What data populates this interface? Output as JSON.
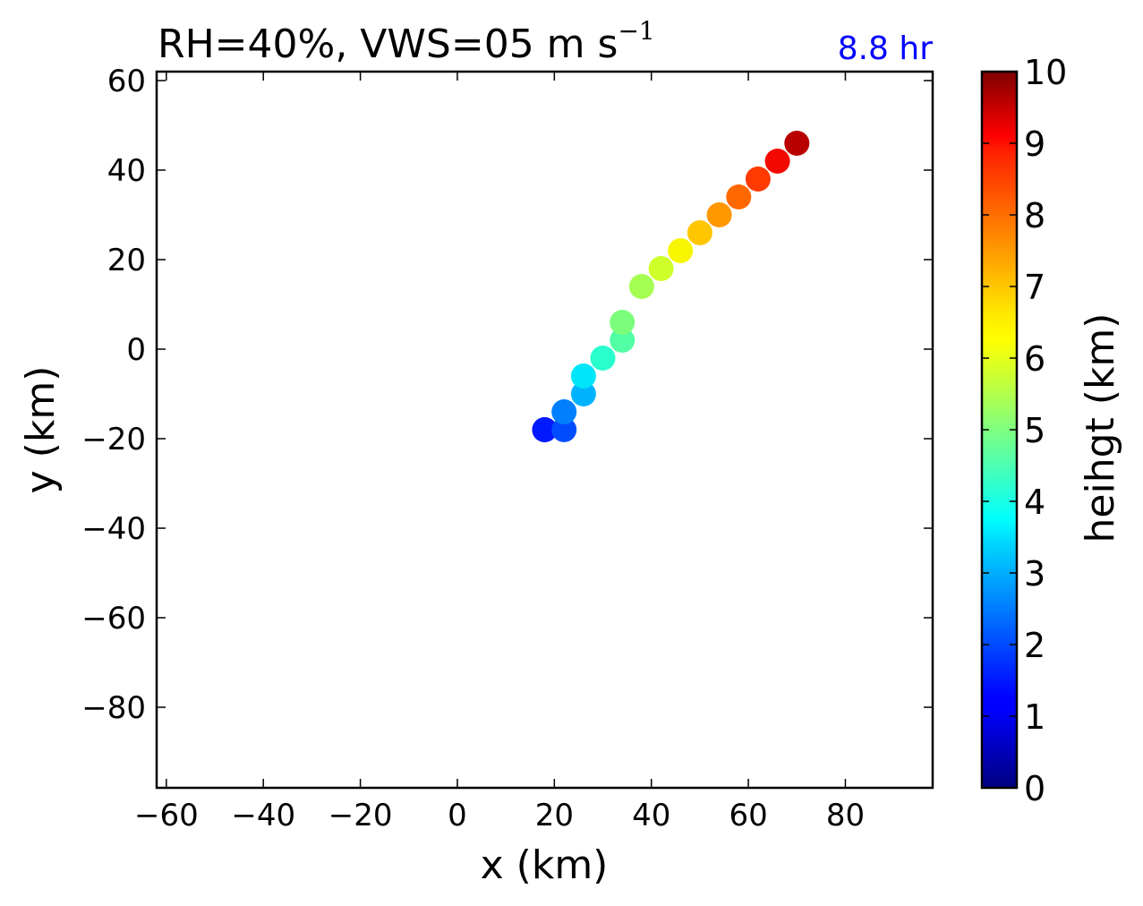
{
  "chart_data": {
    "type": "scatter",
    "title": "RH=40%, VWS=05 m s",
    "title_superscript": "−1",
    "time_label": "8.8 hr",
    "time_label_color": "#0000ff",
    "xlabel": "x (km)",
    "ylabel": "y (km)",
    "xlim": [
      -62,
      98
    ],
    "ylim": [
      -98,
      62
    ],
    "xticks": [
      -60,
      -40,
      -20,
      0,
      20,
      40,
      60,
      80
    ],
    "yticks": [
      60,
      40,
      20,
      0,
      -20,
      -40,
      -60,
      -80
    ],
    "xtick_labels": [
      "−60",
      "−40",
      "−20",
      "0",
      "20",
      "40",
      "60",
      "80"
    ],
    "ytick_labels": [
      "60",
      "40",
      "20",
      "0",
      "−20",
      "−40",
      "−60",
      "−80"
    ],
    "colormap": "jet",
    "colorbar": {
      "label": "heihgt (km)",
      "min": 0,
      "max": 10,
      "ticks": [
        0,
        1,
        2,
        3,
        4,
        5,
        6,
        7,
        8,
        9,
        10
      ],
      "tick_labels": [
        "0",
        "1",
        "2",
        "3",
        "4",
        "5",
        "6",
        "7",
        "8",
        "9",
        "10"
      ]
    },
    "points": [
      {
        "x": 18,
        "y": -18,
        "height": 1.0
      },
      {
        "x": 18,
        "y": -18,
        "height": 1.5
      },
      {
        "x": 22,
        "y": -18,
        "height": 2.0
      },
      {
        "x": 22,
        "y": -14,
        "height": 2.5
      },
      {
        "x": 26,
        "y": -10,
        "height": 3.0
      },
      {
        "x": 26,
        "y": -6,
        "height": 3.5
      },
      {
        "x": 30,
        "y": -2,
        "height": 4.0
      },
      {
        "x": 34,
        "y": 2,
        "height": 4.5
      },
      {
        "x": 34,
        "y": 6,
        "height": 5.0
      },
      {
        "x": 38,
        "y": 14,
        "height": 5.5
      },
      {
        "x": 42,
        "y": 18,
        "height": 6.0
      },
      {
        "x": 46,
        "y": 22,
        "height": 6.5
      },
      {
        "x": 50,
        "y": 26,
        "height": 7.0
      },
      {
        "x": 54,
        "y": 30,
        "height": 7.5
      },
      {
        "x": 58,
        "y": 34,
        "height": 8.0
      },
      {
        "x": 62,
        "y": 38,
        "height": 8.5
      },
      {
        "x": 66,
        "y": 42,
        "height": 9.0
      },
      {
        "x": 70,
        "y": 46,
        "height": 9.5
      }
    ]
  }
}
